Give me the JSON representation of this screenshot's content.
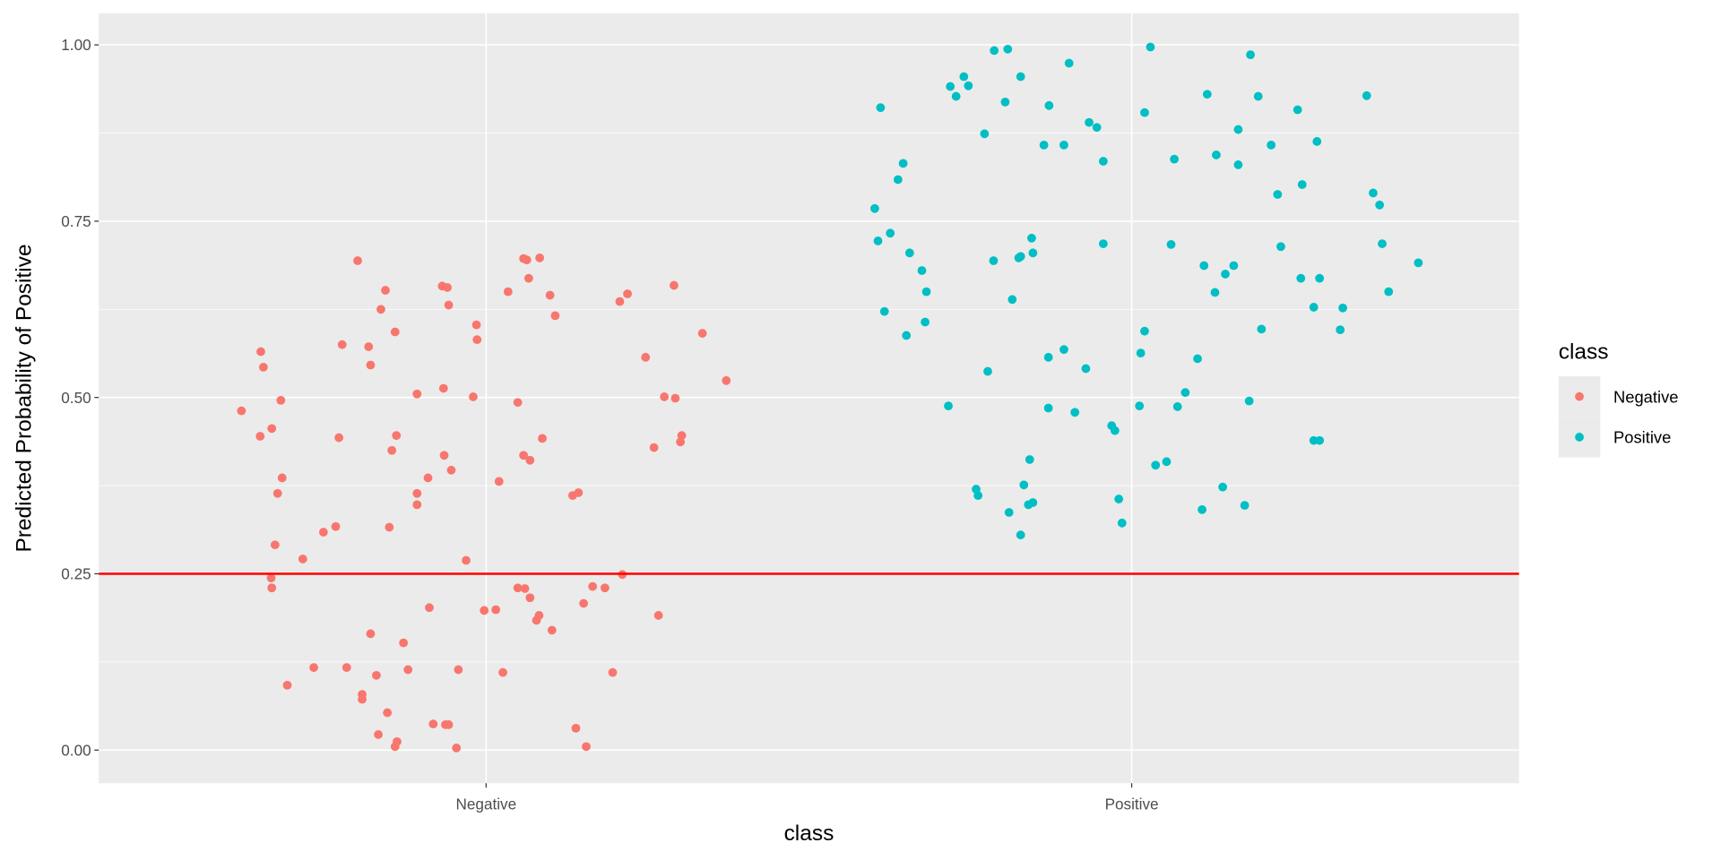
{
  "chart_data": {
    "type": "scatter",
    "title": "",
    "xlabel": "class",
    "ylabel": "Predicted Probability of Positive",
    "categories": [
      "Negative",
      "Positive"
    ],
    "xlim": [
      0.4,
      2.6
    ],
    "ylim": [
      -0.047,
      1.045
    ],
    "yticks": [
      0.0,
      0.25,
      0.5,
      0.75,
      1.0
    ],
    "ytick_labels": [
      "0.00",
      "0.25",
      "0.50",
      "0.75",
      "1.00"
    ],
    "grid": true,
    "hline": {
      "y": 0.25,
      "color": "#FF0000"
    },
    "legend": {
      "title": "class",
      "position": "right",
      "entries": [
        "Negative",
        "Positive"
      ]
    },
    "colors": {
      "Negative": "#F8766D",
      "Positive": "#00BFC4",
      "panel": "#EBEBEB",
      "grid": "#FFFFFF"
    },
    "note": "points: [jitter offset from category center, predicted probability]",
    "series": [
      {
        "name": "Negative",
        "category": 1,
        "points": [
          [
            -0.379,
            0.481
          ],
          [
            -0.349,
            0.565
          ],
          [
            -0.345,
            0.543
          ],
          [
            -0.318,
            0.496
          ],
          [
            -0.332,
            0.456
          ],
          [
            -0.35,
            0.445
          ],
          [
            -0.316,
            0.386
          ],
          [
            -0.323,
            0.364
          ],
          [
            -0.327,
            0.291
          ],
          [
            -0.333,
            0.244
          ],
          [
            -0.332,
            0.23
          ],
          [
            -0.284,
            0.271
          ],
          [
            -0.308,
            0.092
          ],
          [
            -0.267,
            0.117
          ],
          [
            -0.252,
            0.309
          ],
          [
            -0.233,
            0.317
          ],
          [
            -0.228,
            0.443
          ],
          [
            -0.223,
            0.575
          ],
          [
            -0.199,
            0.694
          ],
          [
            -0.216,
            0.117
          ],
          [
            -0.192,
            0.079
          ],
          [
            -0.192,
            0.072
          ],
          [
            -0.182,
            0.572
          ],
          [
            -0.179,
            0.546
          ],
          [
            -0.163,
            0.625
          ],
          [
            -0.156,
            0.652
          ],
          [
            -0.141,
            0.593
          ],
          [
            -0.139,
            0.446
          ],
          [
            -0.146,
            0.425
          ],
          [
            -0.15,
            0.316
          ],
          [
            -0.179,
            0.165
          ],
          [
            -0.17,
            0.106
          ],
          [
            -0.128,
            0.152
          ],
          [
            -0.121,
            0.114
          ],
          [
            -0.153,
            0.053
          ],
          [
            -0.167,
            0.022
          ],
          [
            -0.138,
            0.012
          ],
          [
            -0.141,
            0.005
          ],
          [
            -0.107,
            0.505
          ],
          [
            -0.107,
            0.364
          ],
          [
            -0.107,
            0.348
          ],
          [
            -0.09,
            0.386
          ],
          [
            -0.088,
            0.202
          ],
          [
            -0.082,
            0.037
          ],
          [
            -0.063,
            0.036
          ],
          [
            -0.058,
            0.036
          ],
          [
            -0.068,
            0.658
          ],
          [
            -0.06,
            0.656
          ],
          [
            -0.058,
            0.631
          ],
          [
            -0.066,
            0.513
          ],
          [
            -0.065,
            0.418
          ],
          [
            -0.054,
            0.397
          ],
          [
            -0.031,
            0.269
          ],
          [
            -0.043,
            0.114
          ],
          [
            -0.046,
            0.003
          ],
          [
            -0.02,
            0.501
          ],
          [
            -0.015,
            0.603
          ],
          [
            -0.014,
            0.582
          ],
          [
            -0.003,
            0.198
          ],
          [
            0.015,
            0.199
          ],
          [
            0.02,
            0.381
          ],
          [
            0.026,
            0.11
          ],
          [
            0.034,
            0.65
          ],
          [
            0.049,
            0.493
          ],
          [
            0.058,
            0.697
          ],
          [
            0.063,
            0.695
          ],
          [
            0.066,
            0.669
          ],
          [
            0.083,
            0.698
          ],
          [
            0.099,
            0.645
          ],
          [
            0.107,
            0.616
          ],
          [
            0.087,
            0.442
          ],
          [
            0.058,
            0.418
          ],
          [
            0.068,
            0.411
          ],
          [
            0.049,
            0.23
          ],
          [
            0.06,
            0.229
          ],
          [
            0.068,
            0.216
          ],
          [
            0.082,
            0.191
          ],
          [
            0.078,
            0.184
          ],
          [
            0.102,
            0.17
          ],
          [
            0.134,
            0.361
          ],
          [
            0.143,
            0.365
          ],
          [
            0.165,
            0.232
          ],
          [
            0.184,
            0.23
          ],
          [
            0.151,
            0.208
          ],
          [
            0.196,
            0.11
          ],
          [
            0.211,
            0.249
          ],
          [
            0.139,
            0.031
          ],
          [
            0.155,
            0.005
          ],
          [
            0.207,
            0.636
          ],
          [
            0.219,
            0.647
          ],
          [
            0.247,
            0.557
          ],
          [
            0.26,
            0.429
          ],
          [
            0.291,
            0.659
          ],
          [
            0.276,
            0.501
          ],
          [
            0.293,
            0.499
          ],
          [
            0.303,
            0.446
          ],
          [
            0.301,
            0.437
          ],
          [
            0.267,
            0.191
          ],
          [
            0.335,
            0.591
          ],
          [
            0.372,
            0.524
          ]
        ]
      },
      {
        "name": "Positive",
        "category": 2,
        "points": [
          [
            -0.389,
            0.911
          ],
          [
            -0.398,
            0.768
          ],
          [
            -0.393,
            0.722
          ],
          [
            -0.374,
            0.733
          ],
          [
            -0.362,
            0.809
          ],
          [
            -0.354,
            0.832
          ],
          [
            -0.344,
            0.705
          ],
          [
            -0.325,
            0.68
          ],
          [
            -0.318,
            0.65
          ],
          [
            -0.383,
            0.622
          ],
          [
            -0.349,
            0.588
          ],
          [
            -0.32,
            0.607
          ],
          [
            -0.284,
            0.488
          ],
          [
            -0.281,
            0.941
          ],
          [
            -0.272,
            0.927
          ],
          [
            -0.26,
            0.955
          ],
          [
            -0.253,
            0.942
          ],
          [
            -0.213,
            0.992
          ],
          [
            -0.192,
            0.994
          ],
          [
            -0.228,
            0.874
          ],
          [
            -0.196,
            0.919
          ],
          [
            -0.172,
            0.955
          ],
          [
            -0.128,
            0.914
          ],
          [
            -0.136,
            0.858
          ],
          [
            -0.105,
            0.858
          ],
          [
            -0.097,
            0.974
          ],
          [
            -0.066,
            0.89
          ],
          [
            -0.054,
            0.883
          ],
          [
            -0.044,
            0.835
          ],
          [
            -0.214,
            0.694
          ],
          [
            -0.175,
            0.698
          ],
          [
            -0.172,
            0.7
          ],
          [
            -0.155,
            0.726
          ],
          [
            -0.153,
            0.705
          ],
          [
            -0.185,
            0.639
          ],
          [
            -0.223,
            0.537
          ],
          [
            -0.129,
            0.557
          ],
          [
            -0.105,
            0.568
          ],
          [
            -0.071,
            0.541
          ],
          [
            -0.129,
            0.485
          ],
          [
            -0.088,
            0.479
          ],
          [
            -0.044,
            0.718
          ],
          [
            -0.158,
            0.412
          ],
          [
            -0.241,
            0.37
          ],
          [
            -0.238,
            0.361
          ],
          [
            -0.19,
            0.337
          ],
          [
            -0.167,
            0.376
          ],
          [
            -0.16,
            0.348
          ],
          [
            -0.153,
            0.351
          ],
          [
            -0.172,
            0.305
          ],
          [
            -0.031,
            0.46
          ],
          [
            -0.026,
            0.453
          ],
          [
            -0.02,
            0.356
          ],
          [
            -0.015,
            0.322
          ],
          [
            0.014,
            0.563
          ],
          [
            0.02,
            0.594
          ],
          [
            0.012,
            0.488
          ],
          [
            0.02,
            0.904
          ],
          [
            0.029,
            0.997
          ],
          [
            0.037,
            0.404
          ],
          [
            0.054,
            0.409
          ],
          [
            0.061,
            0.717
          ],
          [
            0.066,
            0.838
          ],
          [
            0.071,
            0.487
          ],
          [
            0.083,
            0.507
          ],
          [
            0.102,
            0.555
          ],
          [
            0.112,
            0.687
          ],
          [
            0.129,
            0.649
          ],
          [
            0.145,
            0.675
          ],
          [
            0.158,
            0.687
          ],
          [
            0.117,
            0.93
          ],
          [
            0.131,
            0.844
          ],
          [
            0.165,
            0.88
          ],
          [
            0.165,
            0.83
          ],
          [
            0.182,
            0.495
          ],
          [
            0.109,
            0.341
          ],
          [
            0.141,
            0.373
          ],
          [
            0.175,
            0.347
          ],
          [
            0.184,
            0.986
          ],
          [
            0.196,
            0.927
          ],
          [
            0.201,
            0.597
          ],
          [
            0.216,
            0.858
          ],
          [
            0.226,
            0.788
          ],
          [
            0.231,
            0.714
          ],
          [
            0.257,
            0.908
          ],
          [
            0.264,
            0.802
          ],
          [
            0.262,
            0.669
          ],
          [
            0.282,
            0.628
          ],
          [
            0.291,
            0.669
          ],
          [
            0.287,
            0.863
          ],
          [
            0.282,
            0.439
          ],
          [
            0.291,
            0.439
          ],
          [
            0.327,
            0.627
          ],
          [
            0.323,
            0.596
          ],
          [
            0.364,
            0.928
          ],
          [
            0.374,
            0.79
          ],
          [
            0.384,
            0.773
          ],
          [
            0.388,
            0.718
          ],
          [
            0.398,
            0.65
          ],
          [
            0.444,
            0.691
          ]
        ]
      }
    ]
  }
}
